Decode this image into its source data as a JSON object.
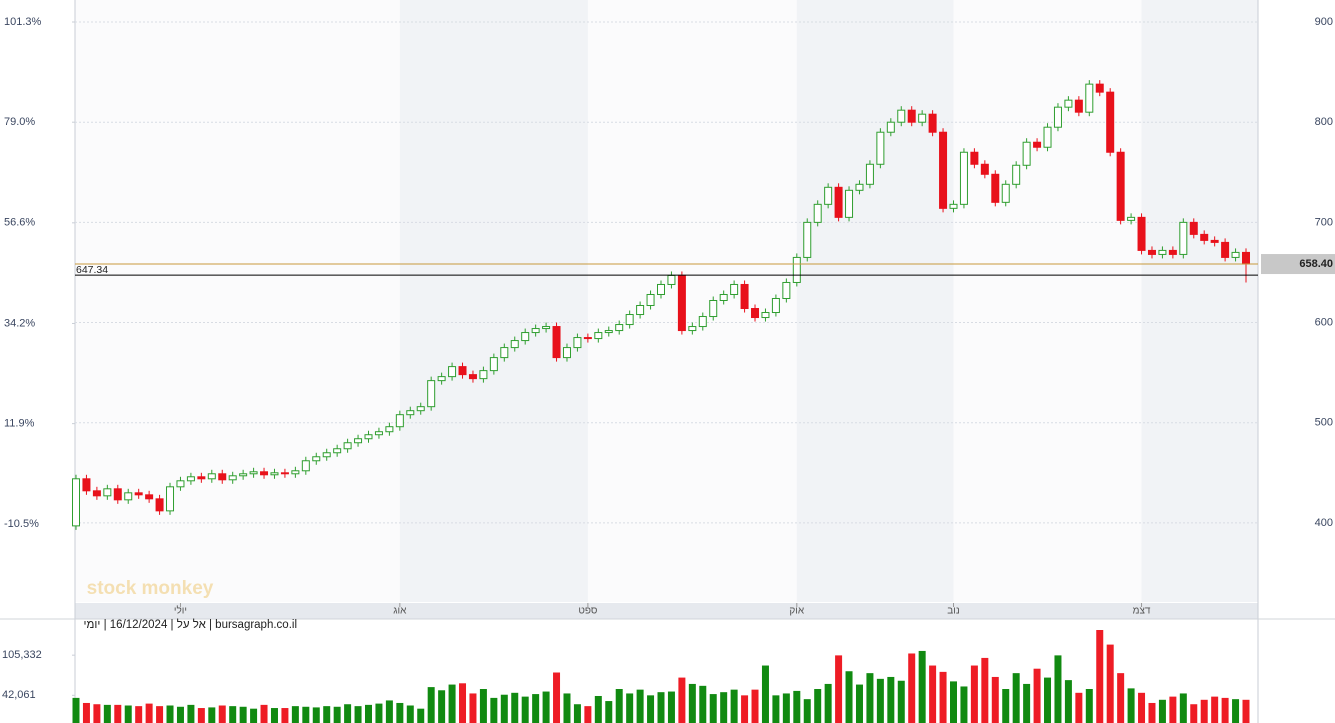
{
  "chart_data": {
    "type": "candlestick",
    "footer": "bursagraph.co.il | אל על | 16/12/2024 | יומי",
    "watermark": "stock monkey",
    "categories": [
      null,
      null,
      null,
      null,
      null,
      null,
      null,
      null,
      null,
      null,
      "יולי",
      null,
      null,
      null,
      null,
      null,
      null,
      null,
      null,
      null,
      null,
      null,
      null,
      null,
      null,
      null,
      null,
      null,
      null,
      null,
      null,
      "אוג",
      null,
      null,
      null,
      null,
      null,
      null,
      null,
      null,
      null,
      null,
      null,
      null,
      null,
      null,
      null,
      null,
      null,
      "ספט",
      null,
      null,
      null,
      null,
      null,
      null,
      null,
      null,
      null,
      null,
      null,
      null,
      null,
      null,
      null,
      null,
      null,
      null,
      null,
      "אוק",
      null,
      null,
      null,
      null,
      null,
      null,
      null,
      null,
      null,
      null,
      null,
      null,
      null,
      null,
      "נוב",
      null,
      null,
      null,
      null,
      null,
      null,
      null,
      null,
      null,
      null,
      null,
      null,
      null,
      null,
      null,
      null,
      null,
      "דצמ",
      null,
      null,
      null,
      null,
      null,
      null,
      null,
      null,
      null,
      null
    ],
    "open": [
      397,
      444,
      432,
      427,
      434,
      423,
      430,
      428,
      424,
      412,
      436,
      442,
      446,
      444,
      449,
      443,
      447,
      449,
      451,
      448,
      450,
      449,
      452,
      462,
      466,
      470,
      474,
      480,
      484,
      488,
      491,
      496,
      508,
      512,
      516,
      542,
      546,
      556,
      548,
      544,
      552,
      565,
      575,
      582,
      590,
      594,
      596,
      565,
      575,
      585,
      584,
      590,
      592,
      598,
      608,
      617,
      628,
      638,
      647,
      592,
      596,
      606,
      622,
      628,
      638,
      614,
      605,
      610,
      624,
      640,
      665,
      700,
      718,
      735,
      705,
      732,
      738,
      758,
      790,
      800,
      812,
      800,
      808,
      790,
      714,
      718,
      770,
      758,
      748,
      720,
      738,
      757,
      780,
      775,
      795,
      815,
      822,
      810,
      838,
      830,
      770,
      702,
      705,
      672,
      668,
      672,
      668,
      700,
      688,
      682,
      680,
      665,
      670
    ],
    "high": [
      448,
      448,
      436,
      438,
      438,
      434,
      434,
      432,
      428,
      440,
      446,
      450,
      450,
      453,
      453,
      451,
      453,
      455,
      455,
      454,
      454,
      456,
      466,
      470,
      474,
      478,
      484,
      488,
      492,
      495,
      500,
      512,
      516,
      520,
      546,
      550,
      560,
      560,
      552,
      556,
      569,
      579,
      586,
      594,
      598,
      600,
      600,
      579,
      589,
      589,
      594,
      596,
      602,
      612,
      621,
      632,
      642,
      651,
      651,
      600,
      610,
      626,
      632,
      642,
      642,
      618,
      614,
      628,
      644,
      669,
      704,
      722,
      739,
      739,
      736,
      742,
      762,
      794,
      804,
      816,
      816,
      812,
      812,
      794,
      722,
      774,
      774,
      762,
      752,
      742,
      761,
      784,
      784,
      799,
      819,
      826,
      826,
      842,
      842,
      834,
      774,
      709,
      709,
      676,
      676,
      676,
      704,
      704,
      692,
      686,
      684,
      674,
      674
    ],
    "low": [
      393,
      428,
      423,
      423,
      419,
      419,
      424,
      420,
      408,
      408,
      432,
      438,
      440,
      440,
      439,
      439,
      443,
      445,
      444,
      444,
      445,
      445,
      448,
      458,
      462,
      466,
      470,
      476,
      480,
      484,
      487,
      492,
      504,
      508,
      512,
      538,
      542,
      544,
      540,
      540,
      548,
      561,
      571,
      578,
      586,
      590,
      561,
      561,
      571,
      580,
      580,
      586,
      588,
      594,
      604,
      613,
      624,
      634,
      588,
      588,
      592,
      602,
      618,
      624,
      610,
      601,
      601,
      606,
      620,
      636,
      661,
      696,
      714,
      701,
      701,
      728,
      734,
      754,
      786,
      796,
      796,
      796,
      786,
      710,
      710,
      714,
      754,
      744,
      716,
      716,
      734,
      753,
      771,
      771,
      791,
      811,
      806,
      806,
      826,
      766,
      698,
      698,
      668,
      664,
      664,
      664,
      664,
      684,
      678,
      676,
      661,
      661,
      640
    ],
    "close": [
      444,
      432,
      427,
      434,
      423,
      430,
      428,
      424,
      412,
      436,
      442,
      446,
      444,
      449,
      443,
      447,
      449,
      451,
      448,
      450,
      449,
      452,
      462,
      466,
      470,
      474,
      480,
      484,
      488,
      491,
      496,
      508,
      512,
      516,
      542,
      546,
      556,
      548,
      544,
      552,
      565,
      575,
      582,
      590,
      594,
      596,
      565,
      575,
      585,
      584,
      590,
      592,
      598,
      608,
      617,
      628,
      638,
      647,
      592,
      596,
      606,
      622,
      628,
      638,
      614,
      605,
      610,
      624,
      640,
      665,
      700,
      718,
      735,
      705,
      732,
      738,
      758,
      790,
      800,
      812,
      800,
      808,
      790,
      714,
      718,
      770,
      758,
      748,
      720,
      738,
      757,
      780,
      775,
      795,
      815,
      822,
      810,
      838,
      830,
      770,
      702,
      705,
      672,
      668,
      672,
      668,
      700,
      688,
      682,
      680,
      665,
      670,
      658.4
    ],
    "volume": [
      38000,
      30000,
      28000,
      27000,
      27000,
      26000,
      25000,
      29000,
      25000,
      26000,
      24000,
      27000,
      22000,
      23000,
      26000,
      25000,
      24000,
      21000,
      27000,
      22000,
      22000,
      25000,
      24000,
      23000,
      25000,
      24000,
      28000,
      25000,
      27000,
      29000,
      34000,
      30000,
      26000,
      21000,
      55000,
      50000,
      59000,
      61000,
      45000,
      52000,
      38000,
      43000,
      46000,
      40000,
      44000,
      48000,
      78000,
      45000,
      28000,
      25000,
      41000,
      33000,
      52000,
      45000,
      51000,
      42000,
      47000,
      48000,
      70000,
      60000,
      57000,
      44000,
      47000,
      51000,
      42000,
      51000,
      89000,
      42000,
      45000,
      49000,
      36000,
      52000,
      60000,
      105000,
      80000,
      59000,
      77000,
      68000,
      71000,
      65000,
      108000,
      112000,
      89000,
      79000,
      64000,
      56000,
      89000,
      101000,
      71000,
      52000,
      77000,
      60000,
      84000,
      70000,
      105000,
      66000,
      46000,
      52000,
      145000,
      122000,
      77000,
      53000,
      46000,
      30000,
      35000,
      40000,
      45000,
      28000,
      35000,
      40000,
      38000,
      36000,
      35000
    ],
    "up_color": "#2f9e2f",
    "down_color": "#e8111b",
    "volume_up_color": "#118a11",
    "volume_down_color": "#ee1c25",
    "ylim": [
      321,
      922
    ],
    "yticks": [
      400,
      500,
      600,
      700,
      800,
      900
    ],
    "y2lim": [
      -27.8,
      106.2
    ],
    "y2ticks": [
      {
        "value": -10.5,
        "label": "-10.5%"
      },
      {
        "value": 11.9,
        "label": "11.9%"
      },
      {
        "value": 34.2,
        "label": "34.2%"
      },
      {
        "value": 56.6,
        "label": "56.6%"
      },
      {
        "value": 79.0,
        "label": "79.0%"
      },
      {
        "value": 101.3,
        "label": "101.3%"
      }
    ],
    "grid": true,
    "reference_lines": [
      {
        "value": 647.34,
        "label": "647.34",
        "color": "#000000",
        "label_side": "left"
      },
      {
        "value": 658.4,
        "label": "658.40",
        "color": "#c89a3c",
        "label_side": "right"
      }
    ],
    "volume_ylim": [
      0,
      145000
    ],
    "volume_yticks": [
      {
        "value": 42061,
        "label": "42,061"
      },
      {
        "value": 105332,
        "label": "105,332"
      }
    ]
  }
}
